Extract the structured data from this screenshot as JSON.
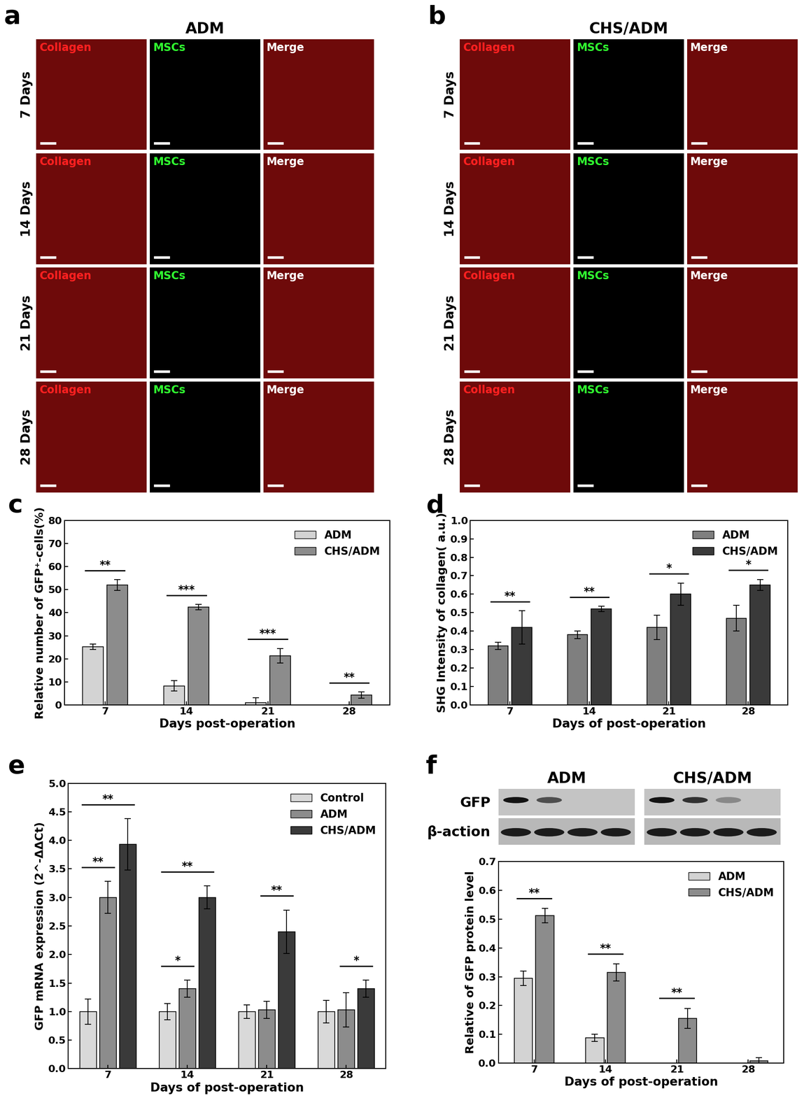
{
  "image_panels": [
    {
      "letter": "a",
      "title": "ADM",
      "rows": [
        "7 Days",
        "14 Days",
        "21 Days",
        "28 Days"
      ],
      "columns": [
        "Collagen",
        "MSCs",
        "Merge"
      ]
    },
    {
      "letter": "b",
      "title": "CHS/ADM",
      "rows": [
        "7 Days",
        "14 Days",
        "21 Days",
        "28 Days"
      ],
      "columns": [
        "Collagen",
        "MSCs",
        "Merge"
      ]
    }
  ],
  "chart_data": [
    {
      "panel": "c",
      "type": "bar",
      "categories": [
        "7",
        "14",
        "21",
        "28"
      ],
      "x_label": "Days post-operation",
      "y_label": "Relative number of GFP⁺-cells(%)",
      "series": [
        {
          "name": "ADM",
          "color": "#d3d3d3",
          "values": [
            25.2,
            8.3,
            1.0,
            0
          ],
          "errors": [
            1.2,
            2.2,
            2.2,
            0
          ]
        },
        {
          "name": "CHS/ADM",
          "color": "#8c8c8c",
          "values": [
            52.0,
            42.4,
            21.3,
            4.3
          ],
          "errors": [
            2.3,
            1.1,
            3.2,
            1.3
          ]
        }
      ],
      "significance": [
        {
          "category": "7",
          "pair": [
            "ADM",
            "CHS/ADM"
          ],
          "label": "**"
        },
        {
          "category": "14",
          "pair": [
            "ADM",
            "CHS/ADM"
          ],
          "label": "***"
        },
        {
          "category": "21",
          "pair": [
            "ADM",
            "CHS/ADM"
          ],
          "label": "***"
        },
        {
          "category": "28",
          "pair": [
            "ADM",
            "CHS/ADM"
          ],
          "label": "**"
        }
      ],
      "ylim": [
        0,
        80
      ],
      "yticks": [
        0,
        10,
        20,
        30,
        40,
        50,
        60,
        70,
        80
      ],
      "grid": false,
      "legend": "upper right"
    },
    {
      "panel": "d",
      "type": "bar",
      "categories": [
        "7",
        "14",
        "21",
        "28"
      ],
      "x_label": "Days of post-operation",
      "y_label": "SHG Intensity of collagen( a.u.)",
      "series": [
        {
          "name": "ADM",
          "color": "#7f7f7f",
          "values": [
            0.32,
            0.38,
            0.42,
            0.47
          ],
          "errors": [
            0.02,
            0.02,
            0.065,
            0.07
          ]
        },
        {
          "name": "CHS/ADM",
          "color": "#3a3a3a",
          "values": [
            0.42,
            0.52,
            0.6,
            0.65
          ],
          "errors": [
            0.09,
            0.015,
            0.06,
            0.03
          ]
        }
      ],
      "significance": [
        {
          "category": "7",
          "pair": [
            "ADM",
            "CHS/ADM"
          ],
          "label": "**"
        },
        {
          "category": "14",
          "pair": [
            "ADM",
            "CHS/ADM"
          ],
          "label": "**"
        },
        {
          "category": "21",
          "pair": [
            "ADM",
            "CHS/ADM"
          ],
          "label": "*"
        },
        {
          "category": "28",
          "pair": [
            "ADM",
            "CHS/ADM"
          ],
          "label": "*"
        }
      ],
      "ylim": [
        0.0,
        1.0
      ],
      "yticks": [
        0.0,
        0.1,
        0.2,
        0.3,
        0.4,
        0.5,
        0.6,
        0.7,
        0.8,
        0.9,
        1.0
      ],
      "grid": false,
      "legend": "upper right"
    },
    {
      "panel": "e",
      "type": "bar",
      "categories": [
        "7",
        "14",
        "21",
        "28"
      ],
      "x_label": "Days of post-operation",
      "y_label": "GFP mRNA expression (2^-ΔΔCt)",
      "series": [
        {
          "name": "Control",
          "color": "#d9d9d9",
          "values": [
            1.0,
            1.0,
            1.0,
            1.0
          ],
          "errors": [
            0.22,
            0.14,
            0.12,
            0.2
          ]
        },
        {
          "name": "ADM",
          "color": "#8c8c8c",
          "values": [
            3.0,
            1.4,
            1.03,
            1.03
          ],
          "errors": [
            0.28,
            0.15,
            0.15,
            0.3
          ]
        },
        {
          "name": "CHS/ADM",
          "color": "#3a3a3a",
          "values": [
            3.93,
            3.0,
            2.4,
            1.4
          ],
          "errors": [
            0.45,
            0.2,
            0.38,
            0.15
          ]
        }
      ],
      "significance": [
        {
          "category": "7",
          "pair": [
            "Control",
            "ADM"
          ],
          "label": "**"
        },
        {
          "category": "7",
          "pair": [
            "Control",
            "CHS/ADM"
          ],
          "label": "**"
        },
        {
          "category": "14",
          "pair": [
            "Control",
            "ADM"
          ],
          "label": "*"
        },
        {
          "category": "14",
          "pair": [
            "Control",
            "CHS/ADM"
          ],
          "label": "**"
        },
        {
          "category": "21",
          "pair": [
            "ADM",
            "CHS/ADM"
          ],
          "label": "**"
        },
        {
          "category": "28",
          "pair": [
            "ADM",
            "CHS/ADM"
          ],
          "label": "*"
        }
      ],
      "ylim": [
        0.0,
        5.0
      ],
      "yticks": [
        0.0,
        0.5,
        1.0,
        1.5,
        2.0,
        2.5,
        3.0,
        3.5,
        4.0,
        4.5,
        5.0
      ],
      "grid": false,
      "legend": "upper right"
    },
    {
      "panel": "f",
      "type": "bar",
      "categories": [
        "7",
        "14",
        "21",
        "28"
      ],
      "x_label": "Days of post-operation",
      "y_label": "Relative of GFP protein level",
      "blot": {
        "groups": [
          "ADM",
          "CHS/ADM"
        ],
        "rows": [
          "GFP",
          "β-action"
        ]
      },
      "series": [
        {
          "name": "ADM",
          "color": "#d3d3d3",
          "values": [
            0.295,
            0.088,
            0,
            0
          ],
          "errors": [
            0.025,
            0.013,
            0,
            0
          ]
        },
        {
          "name": "CHS/ADM",
          "color": "#8c8c8c",
          "values": [
            0.512,
            0.315,
            0.155,
            0.007
          ],
          "errors": [
            0.025,
            0.03,
            0.035,
            0.012
          ]
        }
      ],
      "significance": [
        {
          "category": "7",
          "pair": [
            "ADM",
            "CHS/ADM"
          ],
          "label": "**"
        },
        {
          "category": "14",
          "pair": [
            "ADM",
            "CHS/ADM"
          ],
          "label": "**"
        },
        {
          "category": "21",
          "pair": [
            "ADM",
            "CHS/ADM"
          ],
          "label": "**"
        }
      ],
      "ylim": [
        0.0,
        0.7
      ],
      "yticks": [
        0.0,
        0.1,
        0.2,
        0.3,
        0.4,
        0.5,
        0.6,
        0.7
      ],
      "grid": false,
      "legend": "upper right"
    }
  ]
}
